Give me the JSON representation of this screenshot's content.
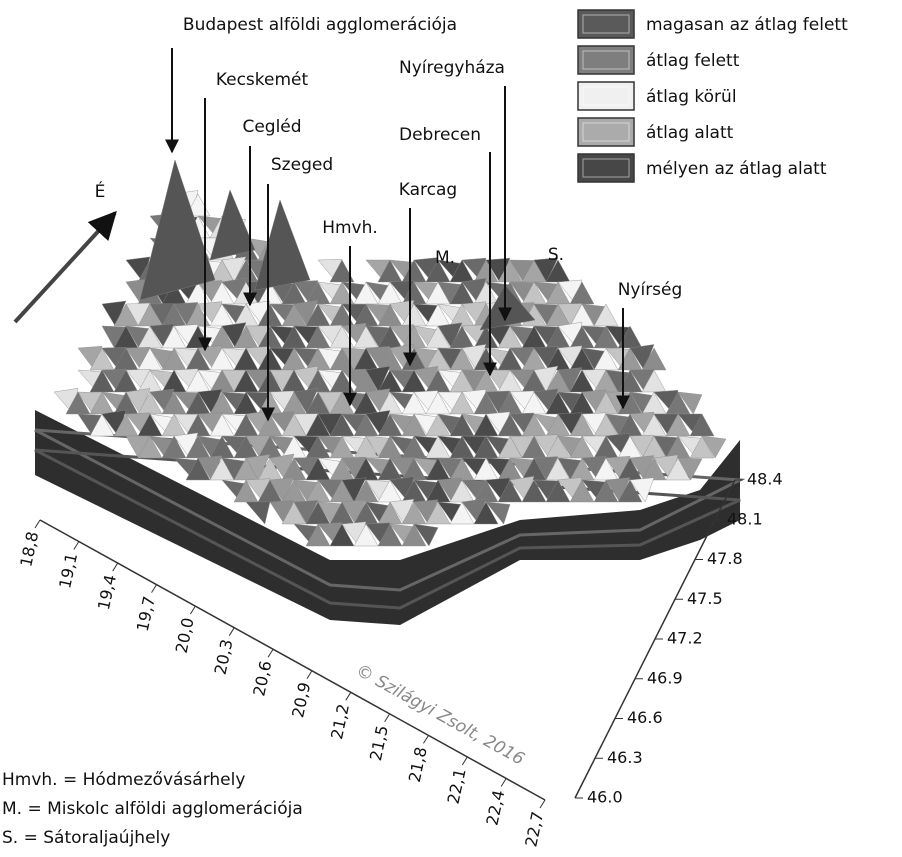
{
  "chart_data": {
    "type": "surface",
    "annotations": [
      "Budapest alföldi agglomerációja",
      "Kecskemét",
      "Cegléd",
      "Szeged",
      "Hmvh.",
      "Karcag",
      "M.",
      "Debrecen",
      "Nyíregyháza",
      "S.",
      "Nyírség",
      "É"
    ],
    "legend": [
      {
        "name": "magasan az átlag felett",
        "color": "#5a5a5a"
      },
      {
        "name": "átlag felett",
        "color": "#7e7e7e"
      },
      {
        "name": "átlag körül",
        "color": "#f0f0f0"
      },
      {
        "name": "átlag alatt",
        "color": "#ababab"
      },
      {
        "name": "mélyen az átlag alatt",
        "color": "#474747"
      }
    ],
    "xlim": [
      18.8,
      22.7
    ],
    "xticks": [
      {
        "value": 18.8,
        "label": "18,8"
      },
      {
        "value": 19.1,
        "label": "19,1"
      },
      {
        "value": 19.4,
        "label": "19,4"
      },
      {
        "value": 19.7,
        "label": "19,7"
      },
      {
        "value": 20.0,
        "label": "20,0"
      },
      {
        "value": 20.3,
        "label": "20,3"
      },
      {
        "value": 20.6,
        "label": "20,6"
      },
      {
        "value": 20.9,
        "label": "20,9"
      },
      {
        "value": 21.2,
        "label": "21,2"
      },
      {
        "value": 21.5,
        "label": "21,5"
      },
      {
        "value": 21.8,
        "label": "21,8"
      },
      {
        "value": 22.1,
        "label": "22,1"
      },
      {
        "value": 22.4,
        "label": "22,4"
      },
      {
        "value": 22.7,
        "label": "22,7"
      }
    ],
    "ylim": [
      46.0,
      48.4
    ],
    "yticks": [
      {
        "value": 46.0,
        "label": "46.0"
      },
      46.3,
      46.6,
      46.9,
      47.2,
      47.5,
      47.8,
      48.1,
      48.4
    ],
    "watermark": "© Szilágyi Zsolt, 2016",
    "notes": [
      "Hmvh. = Hódmezővásárhely",
      "M. = Miskolc alföldi agglomerációja",
      "S. = Sátoraljaújhely"
    ]
  }
}
